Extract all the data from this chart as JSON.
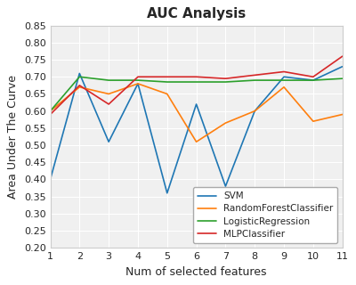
{
  "title": "AUC Analysis",
  "xlabel": "Num of selected features",
  "ylabel": "Area Under The Curve",
  "x": [
    1,
    2,
    3,
    4,
    5,
    6,
    7,
    8,
    9,
    10,
    11
  ],
  "SVM": [
    0.4,
    0.71,
    0.51,
    0.68,
    0.36,
    0.62,
    0.38,
    0.6,
    0.7,
    0.69,
    0.73
  ],
  "RandomForestClassifier": [
    0.6,
    0.67,
    0.65,
    0.68,
    0.65,
    0.51,
    0.565,
    0.6,
    0.67,
    0.57,
    0.59
  ],
  "LogisticRegression": [
    0.6,
    0.7,
    0.69,
    0.69,
    0.685,
    0.685,
    0.685,
    0.69,
    0.69,
    0.69,
    0.695
  ],
  "MLPClassifier": [
    0.59,
    0.675,
    0.62,
    0.7,
    0.7,
    0.7,
    0.695,
    0.705,
    0.715,
    0.7,
    0.76
  ],
  "colors": {
    "SVM": "#1f77b4",
    "RandomForestClassifier": "#ff7f0e",
    "LogisticRegression": "#2ca02c",
    "MLPClassifier": "#d62728"
  },
  "ylim": [
    0.2,
    0.85
  ],
  "xlim": [
    1,
    11
  ],
  "yticks": [
    0.2,
    0.25,
    0.3,
    0.35,
    0.4,
    0.45,
    0.5,
    0.55,
    0.6,
    0.65,
    0.7,
    0.75,
    0.8,
    0.85
  ],
  "legend_loc": "lower right",
  "figsize": [
    4.0,
    3.2
  ],
  "dpi": 100,
  "bg_color": "#f0f0f0",
  "face_color": "#ffffff"
}
